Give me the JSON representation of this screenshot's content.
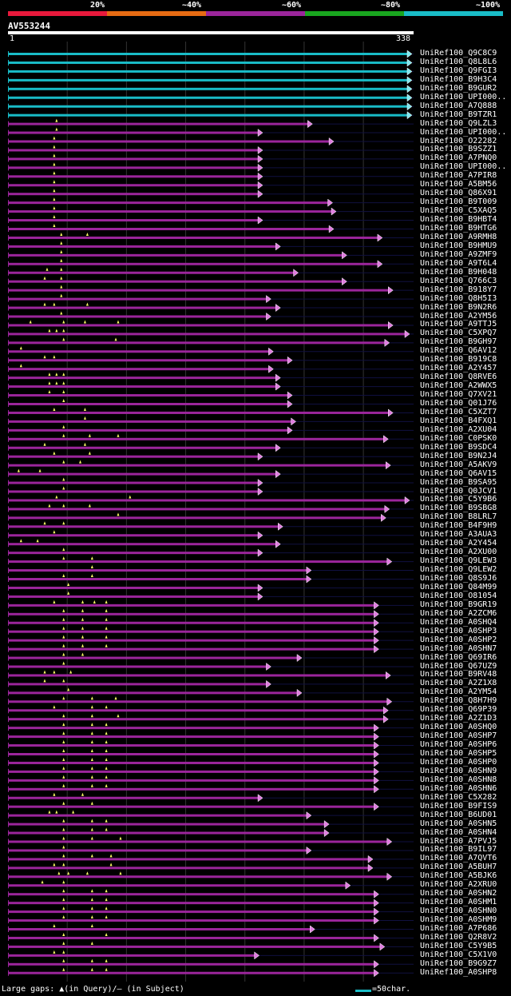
{
  "query": {
    "name": "AV553244",
    "start": 1,
    "end": 338
  },
  "legend": {
    "labels": [
      "20%",
      "~40%",
      "~60%",
      "~80%",
      "~100%"
    ],
    "colors": [
      "#e8193c",
      "#e66b13",
      "#9b259b",
      "#19a61f",
      "#19bcc7"
    ]
  },
  "footer": {
    "gaps_text": "Large gaps: ▲(in Query)/— (in Subject)",
    "scale_text": "=50char."
  },
  "chart_data": {
    "type": "alignment-overview",
    "x_range": [
      1,
      338
    ],
    "hits": [
      {
        "name": "UniRef100_Q9C8C9",
        "end": 338,
        "color": "#19bcc7",
        "gaps": []
      },
      {
        "name": "UniRef100_Q8L8L6",
        "end": 338,
        "color": "#19bcc7",
        "gaps": []
      },
      {
        "name": "UniRef100_Q9FGI3",
        "end": 338,
        "color": "#19bcc7",
        "gaps": []
      },
      {
        "name": "UniRef100_B9H3C4",
        "end": 338,
        "color": "#19bcc7",
        "gaps": []
      },
      {
        "name": "UniRef100_B9GUR2",
        "end": 338,
        "color": "#19bcc7",
        "gaps": []
      },
      {
        "name": "UniRef100_UPI000..",
        "end": 338,
        "color": "#19bcc7",
        "gaps": []
      },
      {
        "name": "UniRef100_A7Q888",
        "end": 338,
        "color": "#19bcc7",
        "gaps": []
      },
      {
        "name": "UniRef100_B9TZR1",
        "end": 338,
        "color": "#19bcc7",
        "gaps": []
      },
      {
        "name": "UniRef100_Q9LZL3",
        "end": 254,
        "color": "#9b259b",
        "gaps": [
          42
        ]
      },
      {
        "name": "UniRef100_UPI000..",
        "end": 212,
        "color": "#9b259b",
        "gaps": [
          42
        ]
      },
      {
        "name": "UniRef100_O22282",
        "end": 272,
        "color": "#9b259b",
        "gaps": [
          40
        ]
      },
      {
        "name": "UniRef100_B9SZZ1",
        "end": 212,
        "color": "#9b259b",
        "gaps": [
          40
        ]
      },
      {
        "name": "UniRef100_A7PNQ0",
        "end": 212,
        "color": "#9b259b",
        "gaps": [
          40
        ]
      },
      {
        "name": "UniRef100_UPI000..",
        "end": 212,
        "color": "#9b259b",
        "gaps": [
          40
        ]
      },
      {
        "name": "UniRef100_A7PIR8",
        "end": 212,
        "color": "#9b259b",
        "gaps": [
          40
        ]
      },
      {
        "name": "UniRef100_A5BM56",
        "end": 212,
        "color": "#9b259b",
        "gaps": [
          40
        ]
      },
      {
        "name": "UniRef100_Q86X91",
        "end": 212,
        "color": "#9b259b",
        "gaps": [
          40
        ]
      },
      {
        "name": "UniRef100_B9T009",
        "end": 271,
        "color": "#9b259b",
        "gaps": [
          40
        ]
      },
      {
        "name": "UniRef100_C5XAQ5",
        "end": 274,
        "color": "#9b259b",
        "gaps": [
          40
        ]
      },
      {
        "name": "UniRef100_B9HBT4",
        "end": 212,
        "color": "#9b259b",
        "gaps": [
          40
        ]
      },
      {
        "name": "UniRef100_B9HTG6",
        "end": 272,
        "color": "#9b259b",
        "gaps": [
          40
        ]
      },
      {
        "name": "UniRef100_A9RMH8",
        "end": 313,
        "color": "#9b259b",
        "gaps": [
          46,
          68
        ]
      },
      {
        "name": "UniRef100_B9HMU9",
        "end": 227,
        "color": "#9b259b",
        "gaps": [
          46
        ]
      },
      {
        "name": "UniRef100_A9ZMF9",
        "end": 283,
        "color": "#9b259b",
        "gaps": [
          46
        ]
      },
      {
        "name": "UniRef100_A9T6L4",
        "end": 313,
        "color": "#9b259b",
        "gaps": [
          46
        ]
      },
      {
        "name": "UniRef100_B9H048",
        "end": 242,
        "color": "#9b259b",
        "gaps": [
          34,
          46
        ]
      },
      {
        "name": "UniRef100_Q766C3",
        "end": 283,
        "color": "#9b259b",
        "gaps": [
          32,
          46
        ]
      },
      {
        "name": "UniRef100_B918Y7",
        "end": 322,
        "color": "#9b259b",
        "gaps": [
          46
        ]
      },
      {
        "name": "UniRef100_Q8H5I3",
        "end": 219,
        "color": "#9b259b",
        "gaps": [
          46
        ]
      },
      {
        "name": "UniRef100_B9N2R6",
        "end": 227,
        "color": "#9b259b",
        "gaps": [
          32,
          40,
          68
        ]
      },
      {
        "name": "UniRef100_A2YM56",
        "end": 219,
        "color": "#9b259b",
        "gaps": [
          46
        ]
      },
      {
        "name": "UniRef100_A9TTJ5",
        "end": 322,
        "color": "#9b259b",
        "gaps": [
          20,
          48,
          66,
          94
        ]
      },
      {
        "name": "UniRef100_C5XPQ7",
        "end": 336,
        "color": "#9b259b",
        "gaps": [
          36,
          42,
          48
        ]
      },
      {
        "name": "UniRef100_B9GH97",
        "end": 319,
        "color": "#9b259b",
        "gaps": [
          48,
          92
        ]
      },
      {
        "name": "UniRef100_Q6AV12",
        "end": 221,
        "color": "#9b259b",
        "gaps": [
          12
        ]
      },
      {
        "name": "UniRef100_B919C8",
        "end": 237,
        "color": "#9b259b",
        "gaps": [
          32,
          40
        ]
      },
      {
        "name": "UniRef100_A2Y457",
        "end": 221,
        "color": "#9b259b",
        "gaps": [
          12
        ]
      },
      {
        "name": "UniRef100_Q8RVE6",
        "end": 227,
        "color": "#9b259b",
        "gaps": [
          36,
          42,
          48
        ]
      },
      {
        "name": "UniRef100_A2WWX5",
        "end": 227,
        "color": "#9b259b",
        "gaps": [
          36,
          42,
          48
        ]
      },
      {
        "name": "UniRef100_Q7XV21",
        "end": 237,
        "color": "#9b259b",
        "gaps": [
          36,
          48
        ]
      },
      {
        "name": "UniRef100_Q01J76",
        "end": 237,
        "color": "#9b259b",
        "gaps": [
          48
        ]
      },
      {
        "name": "UniRef100_C5XZT7",
        "end": 322,
        "color": "#9b259b",
        "gaps": [
          40,
          66
        ]
      },
      {
        "name": "UniRef100_B4FXQ1",
        "end": 240,
        "color": "#9b259b",
        "gaps": [
          66
        ]
      },
      {
        "name": "UniRef100_A2XU04",
        "end": 237,
        "color": "#9b259b",
        "gaps": [
          48
        ]
      },
      {
        "name": "UniRef100_C0PSK0",
        "end": 318,
        "color": "#9b259b",
        "gaps": [
          48,
          70,
          94
        ]
      },
      {
        "name": "UniRef100_B9SDC4",
        "end": 227,
        "color": "#9b259b",
        "gaps": [
          32,
          66
        ]
      },
      {
        "name": "UniRef100_B9N2J4",
        "end": 212,
        "color": "#9b259b",
        "gaps": [
          40,
          70
        ]
      },
      {
        "name": "UniRef100_A5AKV9",
        "end": 320,
        "color": "#9b259b",
        "gaps": [
          48,
          62
        ]
      },
      {
        "name": "UniRef100_Q6AV15",
        "end": 227,
        "color": "#9b259b",
        "gaps": [
          10,
          28
        ]
      },
      {
        "name": "UniRef100_B9SA95",
        "end": 212,
        "color": "#9b259b",
        "gaps": [
          48
        ]
      },
      {
        "name": "UniRef100_Q0JCV1",
        "end": 212,
        "color": "#9b259b",
        "gaps": [
          48
        ]
      },
      {
        "name": "UniRef100_C5Y9B6",
        "end": 336,
        "color": "#9b259b",
        "gaps": [
          42,
          104
        ]
      },
      {
        "name": "UniRef100_B9SBG8",
        "end": 319,
        "color": "#9b259b",
        "gaps": [
          36,
          48,
          70
        ]
      },
      {
        "name": "UniRef100_B8LRL7",
        "end": 316,
        "color": "#9b259b",
        "gaps": [
          94
        ]
      },
      {
        "name": "UniRef100_B4F9H9",
        "end": 229,
        "color": "#9b259b",
        "gaps": [
          32,
          48
        ]
      },
      {
        "name": "UniRef100_A3AUA3",
        "end": 212,
        "color": "#9b259b",
        "gaps": [
          40
        ]
      },
      {
        "name": "UniRef100_A2Y454",
        "end": 227,
        "color": "#9b259b",
        "gaps": [
          12,
          26
        ]
      },
      {
        "name": "UniRef100_A2XU00",
        "end": 212,
        "color": "#9b259b",
        "gaps": [
          48
        ]
      },
      {
        "name": "UniRef100_Q9LEW3",
        "end": 321,
        "color": "#9b259b",
        "gaps": [
          48,
          72
        ]
      },
      {
        "name": "UniRef100_Q9LEW2",
        "end": 253,
        "color": "#9b259b",
        "gaps": [
          72
        ]
      },
      {
        "name": "UniRef100_Q8S9J6",
        "end": 253,
        "color": "#9b259b",
        "gaps": [
          48,
          72
        ]
      },
      {
        "name": "UniRef100_Q84M99",
        "end": 212,
        "color": "#9b259b",
        "gaps": [
          52
        ]
      },
      {
        "name": "UniRef100_O81054",
        "end": 212,
        "color": "#9b259b",
        "gaps": [
          52
        ]
      },
      {
        "name": "UniRef100_B9GR19",
        "end": 310,
        "color": "#9b259b",
        "gaps": [
          40,
          64,
          74,
          84
        ]
      },
      {
        "name": "UniRef100_A2ZCM6",
        "end": 310,
        "color": "#9b259b",
        "gaps": [
          48,
          64,
          84
        ]
      },
      {
        "name": "UniRef100_A0SHQ4",
        "end": 310,
        "color": "#9b259b",
        "gaps": [
          48,
          64,
          84
        ]
      },
      {
        "name": "UniRef100_A0SHP3",
        "end": 310,
        "color": "#9b259b",
        "gaps": [
          48,
          64,
          84
        ]
      },
      {
        "name": "UniRef100_A0SHP2",
        "end": 310,
        "color": "#9b259b",
        "gaps": [
          48,
          64,
          84
        ]
      },
      {
        "name": "UniRef100_A0SHN7",
        "end": 310,
        "color": "#9b259b",
        "gaps": [
          48,
          64,
          84
        ]
      },
      {
        "name": "UniRef100_Q69IR6",
        "end": 245,
        "color": "#9b259b",
        "gaps": [
          48,
          64
        ]
      },
      {
        "name": "UniRef100_Q67UZ9",
        "end": 219,
        "color": "#9b259b",
        "gaps": [
          48
        ]
      },
      {
        "name": "UniRef100_B9RV48",
        "end": 320,
        "color": "#9b259b",
        "gaps": [
          32,
          40,
          54
        ]
      },
      {
        "name": "UniRef100_A2Z1X8",
        "end": 219,
        "color": "#9b259b",
        "gaps": [
          32,
          48
        ]
      },
      {
        "name": "UniRef100_A2YM54",
        "end": 245,
        "color": "#9b259b",
        "gaps": [
          52
        ]
      },
      {
        "name": "UniRef100_Q8H7H9",
        "end": 321,
        "color": "#9b259b",
        "gaps": [
          48,
          72,
          92
        ]
      },
      {
        "name": "UniRef100_Q69P39",
        "end": 318,
        "color": "#9b259b",
        "gaps": [
          40,
          72,
          84
        ]
      },
      {
        "name": "UniRef100_A2Z1D3",
        "end": 318,
        "color": "#9b259b",
        "gaps": [
          48,
          72,
          94
        ]
      },
      {
        "name": "UniRef100_A0SHQ0",
        "end": 310,
        "color": "#9b259b",
        "gaps": [
          48,
          72,
          84
        ]
      },
      {
        "name": "UniRef100_A0SHP7",
        "end": 310,
        "color": "#9b259b",
        "gaps": [
          48,
          72,
          84
        ]
      },
      {
        "name": "UniRef100_A0SHP6",
        "end": 310,
        "color": "#9b259b",
        "gaps": [
          48,
          72,
          84
        ]
      },
      {
        "name": "UniRef100_A0SHP5",
        "end": 310,
        "color": "#9b259b",
        "gaps": [
          48,
          72,
          84
        ]
      },
      {
        "name": "UniRef100_A0SHP0",
        "end": 310,
        "color": "#9b259b",
        "gaps": [
          48,
          72,
          84
        ]
      },
      {
        "name": "UniRef100_A0SHN9",
        "end": 310,
        "color": "#9b259b",
        "gaps": [
          48,
          72,
          84
        ]
      },
      {
        "name": "UniRef100_A0SHN8",
        "end": 310,
        "color": "#9b259b",
        "gaps": [
          48,
          72,
          84
        ]
      },
      {
        "name": "UniRef100_A0SHN6",
        "end": 310,
        "color": "#9b259b",
        "gaps": [
          48,
          72,
          84
        ]
      },
      {
        "name": "UniRef100_C5X282",
        "end": 212,
        "color": "#9b259b",
        "gaps": [
          40,
          64
        ]
      },
      {
        "name": "UniRef100_B9FIS9",
        "end": 310,
        "color": "#9b259b",
        "gaps": [
          48,
          72
        ]
      },
      {
        "name": "UniRef100_B6UD01",
        "end": 253,
        "color": "#9b259b",
        "gaps": [
          36,
          42,
          56
        ]
      },
      {
        "name": "UniRef100_A0SHN5",
        "end": 268,
        "color": "#9b259b",
        "gaps": [
          48,
          72,
          84
        ]
      },
      {
        "name": "UniRef100_A0SHN4",
        "end": 268,
        "color": "#9b259b",
        "gaps": [
          48,
          72,
          84
        ]
      },
      {
        "name": "UniRef100_A7PVJ5",
        "end": 321,
        "color": "#9b259b",
        "gaps": [
          48,
          72,
          96
        ]
      },
      {
        "name": "UniRef100_B9IL97",
        "end": 253,
        "color": "#9b259b",
        "gaps": [
          48
        ]
      },
      {
        "name": "UniRef100_A7QVT6",
        "end": 305,
        "color": "#9b259b",
        "gaps": [
          48,
          72,
          88
        ]
      },
      {
        "name": "UniRef100_A5BUH7",
        "end": 305,
        "color": "#9b259b",
        "gaps": [
          40,
          48,
          88
        ]
      },
      {
        "name": "UniRef100_A5BJK6",
        "end": 321,
        "color": "#9b259b",
        "gaps": [
          44,
          52,
          68,
          96
        ]
      },
      {
        "name": "UniRef100_A2XRU0",
        "end": 286,
        "color": "#9b259b",
        "gaps": [
          30,
          48
        ]
      },
      {
        "name": "UniRef100_A0SHN2",
        "end": 310,
        "color": "#9b259b",
        "gaps": [
          48,
          72,
          84
        ]
      },
      {
        "name": "UniRef100_A0SHM1",
        "end": 310,
        "color": "#9b259b",
        "gaps": [
          48,
          72,
          84
        ]
      },
      {
        "name": "UniRef100_A0SHN0",
        "end": 310,
        "color": "#9b259b",
        "gaps": [
          48,
          72,
          84
        ]
      },
      {
        "name": "UniRef100_A0SHM9",
        "end": 310,
        "color": "#9b259b",
        "gaps": [
          48,
          72,
          84
        ]
      },
      {
        "name": "UniRef100_A7P686",
        "end": 256,
        "color": "#9b259b",
        "gaps": [
          40,
          72
        ]
      },
      {
        "name": "UniRef100_Q2R8V2",
        "end": 310,
        "color": "#9b259b",
        "gaps": [
          48,
          84
        ]
      },
      {
        "name": "UniRef100_C5Y9B5",
        "end": 315,
        "color": "#9b259b",
        "gaps": [
          48,
          72
        ]
      },
      {
        "name": "UniRef100_C5X1V0",
        "end": 209,
        "color": "#9b259b",
        "gaps": [
          40,
          48
        ]
      },
      {
        "name": "UniRef100_B9G9Z7",
        "end": 310,
        "color": "#9b259b",
        "gaps": [
          48,
          72,
          84
        ]
      },
      {
        "name": "UniRef100_A0SHP8",
        "end": 310,
        "color": "#9b259b",
        "gaps": [
          48,
          72,
          84
        ]
      }
    ]
  }
}
